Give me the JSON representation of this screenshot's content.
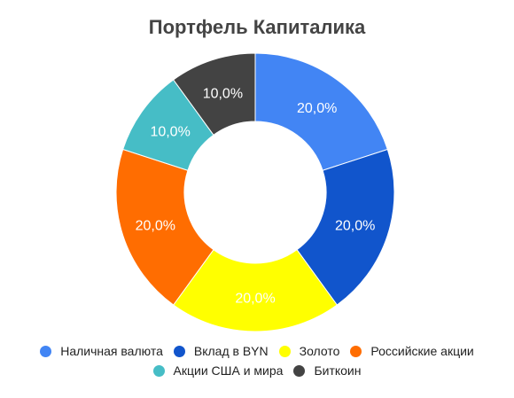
{
  "chart_data": {
    "type": "pie",
    "variant": "donut",
    "title": "Портфель Капиталика",
    "categories": [
      "Наличная валюта",
      "Вклад в BYN",
      "Золото",
      "Российские акции",
      "Акции США и мира",
      "Биткоин"
    ],
    "values": [
      20.0,
      20.0,
      20.0,
      20.0,
      10.0,
      10.0
    ],
    "data_labels": [
      "20,0%",
      "20,0%",
      "20,0%",
      "20,0%",
      "10,0%",
      "10,0%"
    ],
    "colors": [
      "#4285f4",
      "#1155cc",
      "#ffff00",
      "#ff6d01",
      "#46bdc6",
      "#434343"
    ],
    "legend_position": "bottom"
  }
}
